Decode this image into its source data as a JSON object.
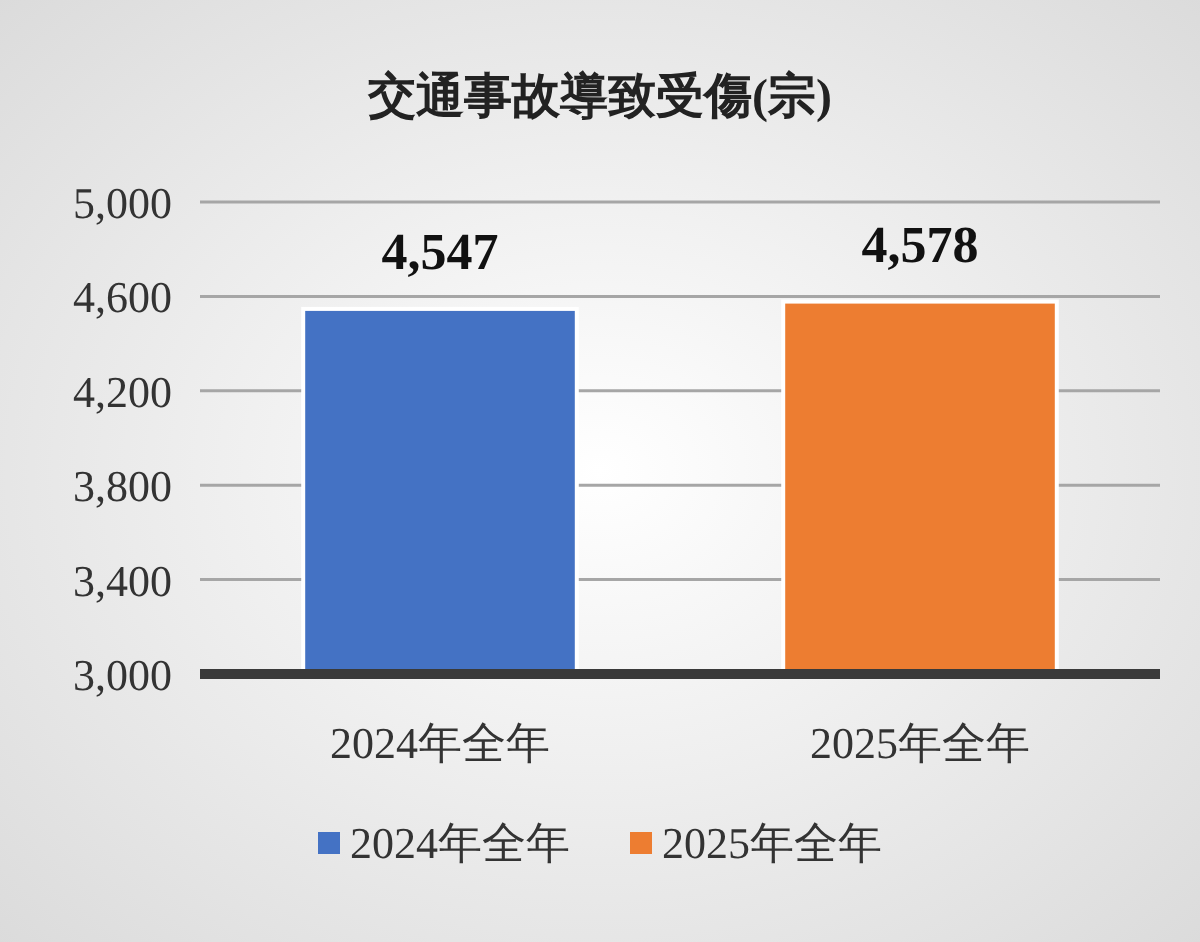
{
  "chart_data": {
    "type": "bar",
    "title": "交通事故導致受傷(宗)",
    "categories": [
      "2024年全年",
      "2025年全年"
    ],
    "series": [
      {
        "name": "2024年全年",
        "color": "#4472c4",
        "values": [
          4547,
          null
        ]
      },
      {
        "name": "2025年全年",
        "color": "#ed7d31",
        "values": [
          null,
          4578
        ]
      }
    ],
    "ylim": [
      3000,
      5000
    ],
    "yticks": [
      {
        "value": 3000,
        "label": "3,000"
      },
      {
        "value": 3400,
        "label": "3,400"
      },
      {
        "value": 3800,
        "label": "3,800"
      },
      {
        "value": 4200,
        "label": "4,200"
      },
      {
        "value": 4600,
        "label": "4,600"
      },
      {
        "value": 5000,
        "label": "5,000"
      }
    ],
    "grid": "y",
    "legend": "bottom",
    "value_labels": [
      [
        "4,547",
        null
      ],
      [
        null,
        "4,578"
      ]
    ]
  }
}
